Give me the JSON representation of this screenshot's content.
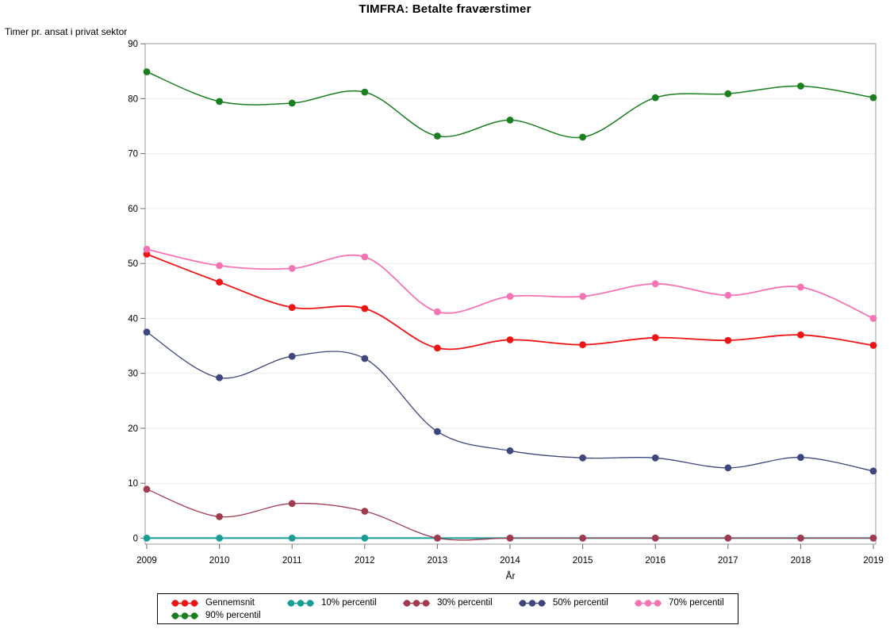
{
  "chart_data": {
    "type": "line",
    "title": "TIMFRA: Betalte fraværstimer",
    "xlabel": "År",
    "ylabel": "Timer pr. ansat i privat sektor",
    "categories": [
      "2009",
      "2010",
      "2011",
      "2012",
      "2013",
      "2014",
      "2015",
      "2016",
      "2017",
      "2018",
      "2019"
    ],
    "yticks": [
      0,
      10,
      20,
      30,
      40,
      50,
      60,
      70,
      80,
      90
    ],
    "ylim": [
      0,
      90
    ],
    "grid": "horizontal",
    "smooth": true,
    "marker": "circle",
    "legend_position": "bottom",
    "series": [
      {
        "name": "Gennemsnit",
        "color": "#F01414",
        "width": 1.8,
        "values": [
          51.7,
          46.6,
          42.0,
          41.8,
          34.6,
          36.1,
          35.2,
          36.5,
          36.0,
          37.0,
          35.1
        ]
      },
      {
        "name": "10% percentil",
        "color": "#189C94",
        "width": 2.0,
        "values": [
          0,
          0,
          0,
          0,
          0,
          0,
          0,
          0,
          0,
          0,
          0
        ]
      },
      {
        "name": "30% percentil",
        "color": "#A13A4E",
        "width": 1.3,
        "values": [
          8.9,
          3.9,
          6.3,
          4.9,
          0,
          0,
          0,
          0,
          0,
          0,
          0
        ]
      },
      {
        "name": "50% percentil",
        "color": "#3E477B",
        "width": 1.3,
        "values": [
          37.5,
          29.2,
          33.1,
          32.7,
          19.4,
          15.9,
          14.6,
          14.6,
          12.8,
          14.7,
          12.2
        ]
      },
      {
        "name": "70% percentil",
        "color": "#F673B6",
        "width": 1.8,
        "values": [
          52.6,
          49.6,
          49.1,
          51.2,
          41.2,
          44.0,
          44.0,
          46.3,
          44.2,
          45.7,
          40.0
        ]
      },
      {
        "name": "90% percentil",
        "color": "#1A7F1F",
        "width": 1.5,
        "values": [
          84.9,
          79.5,
          79.2,
          81.2,
          73.2,
          76.1,
          73.0,
          80.2,
          80.9,
          82.3,
          80.2
        ]
      }
    ],
    "colors": {
      "gridline": "#EBEBEB",
      "frame": "#9B9B9B",
      "tick": "#6B6B6B",
      "text": "#000000"
    }
  }
}
